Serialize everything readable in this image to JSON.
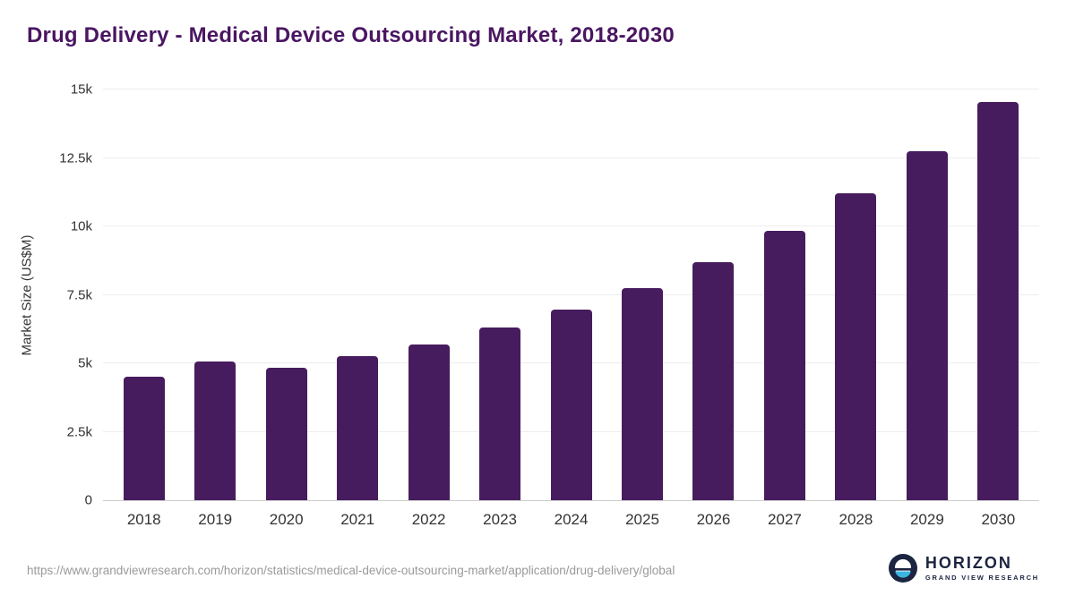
{
  "title": "Drug Delivery - Medical Device Outsourcing Market, 2018-2030",
  "colors": {
    "title_purple": "#4a1662",
    "bar_purple": "#471c5e",
    "gridline": "#ededed",
    "axis_line": "#cccccc",
    "tick_text": "#333333",
    "source_text": "#9a9a9a",
    "logo_navy": "#1b2440",
    "logo_teal": "#3ab5e0"
  },
  "chart_data": {
    "type": "bar",
    "title": "Drug Delivery - Medical Device Outsourcing Market, 2018-2030",
    "categories": [
      "2018",
      "2019",
      "2020",
      "2021",
      "2022",
      "2023",
      "2024",
      "2025",
      "2026",
      "2027",
      "2028",
      "2029",
      "2030"
    ],
    "values": [
      4500,
      5050,
      4850,
      5250,
      5700,
      6300,
      6950,
      7750,
      8700,
      9850,
      11200,
      12750,
      14550
    ],
    "xlabel": "",
    "ylabel": "Market Size (US$M)",
    "ylim": [
      0,
      15000
    ],
    "ytick_values": [
      0,
      2500,
      5000,
      7500,
      10000,
      12500,
      15000
    ],
    "ytick_labels": [
      "0",
      "2.5k",
      "5k",
      "7.5k",
      "10k",
      "12.5k",
      "15k"
    ],
    "grid": true,
    "legend": "none",
    "bar_color": "#471c5e"
  },
  "footer": {
    "source_url": "https://www.grandviewresearch.com/horizon/statistics/medical-device-outsourcing-market/application/drug-delivery/global",
    "logo_title": "HORIZON",
    "logo_subtitle": "GRAND VIEW RESEARCH"
  }
}
